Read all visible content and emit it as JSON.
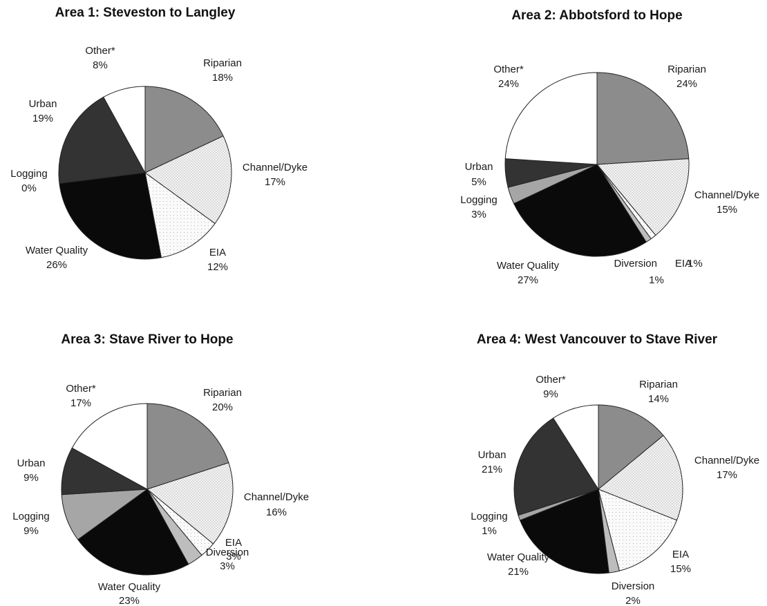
{
  "chart_data": [
    {
      "type": "pie",
      "title": "Area 1: Steveston to Langley",
      "categories": [
        "Riparian",
        "Channel/Dyke",
        "EIA",
        "Water Quality",
        "Logging",
        "Urban",
        "Other*"
      ],
      "values": [
        18,
        17,
        12,
        26,
        0,
        19,
        8
      ],
      "value_labels": [
        "18%",
        "17%",
        "12%",
        "26%",
        "0%",
        "19%",
        "8%"
      ]
    },
    {
      "type": "pie",
      "title": "Area 2: Abbotsford to Hope",
      "categories": [
        "Riparian",
        "Channel/Dyke",
        "EIA",
        "Diversion",
        "Water Quality",
        "Logging",
        "Urban",
        "Other*"
      ],
      "values": [
        24,
        15,
        1,
        1,
        27,
        3,
        5,
        24
      ],
      "value_labels": [
        "24%",
        "15%",
        "1%",
        "1%",
        "27%",
        "3%",
        "5%",
        "24%"
      ]
    },
    {
      "type": "pie",
      "title": "Area 3: Stave River to Hope",
      "categories": [
        "Riparian",
        "Channel/Dyke",
        "EIA",
        "Diversion",
        "Water Quality",
        "Logging",
        "Urban",
        "Other*"
      ],
      "values": [
        20,
        16,
        3,
        3,
        23,
        9,
        9,
        17
      ],
      "value_labels": [
        "20%",
        "16%",
        "3%",
        "3%",
        "23%",
        "9%",
        "9%",
        "17%"
      ]
    },
    {
      "type": "pie",
      "title": "Area 4: West Vancouver to Stave River",
      "categories": [
        "Riparian",
        "Channel/Dyke",
        "EIA",
        "Diversion",
        "Water Quality",
        "Logging",
        "Urban",
        "Other*"
      ],
      "values": [
        14,
        17,
        15,
        2,
        21,
        1,
        21,
        9
      ],
      "value_labels": [
        "14%",
        "17%",
        "15%",
        "2%",
        "21%",
        "1%",
        "21%",
        "9%"
      ]
    }
  ],
  "colors": {
    "Riparian": "#8c8c8c",
    "Channel/Dyke": "#e6e6e6",
    "EIA": "#f2f2f2",
    "Diversion": "#bdbdbd",
    "Water Quality": "#0a0a0a",
    "Logging": "#a6a6a6",
    "Urban": "#333333",
    "Other*": "#ffffff"
  }
}
